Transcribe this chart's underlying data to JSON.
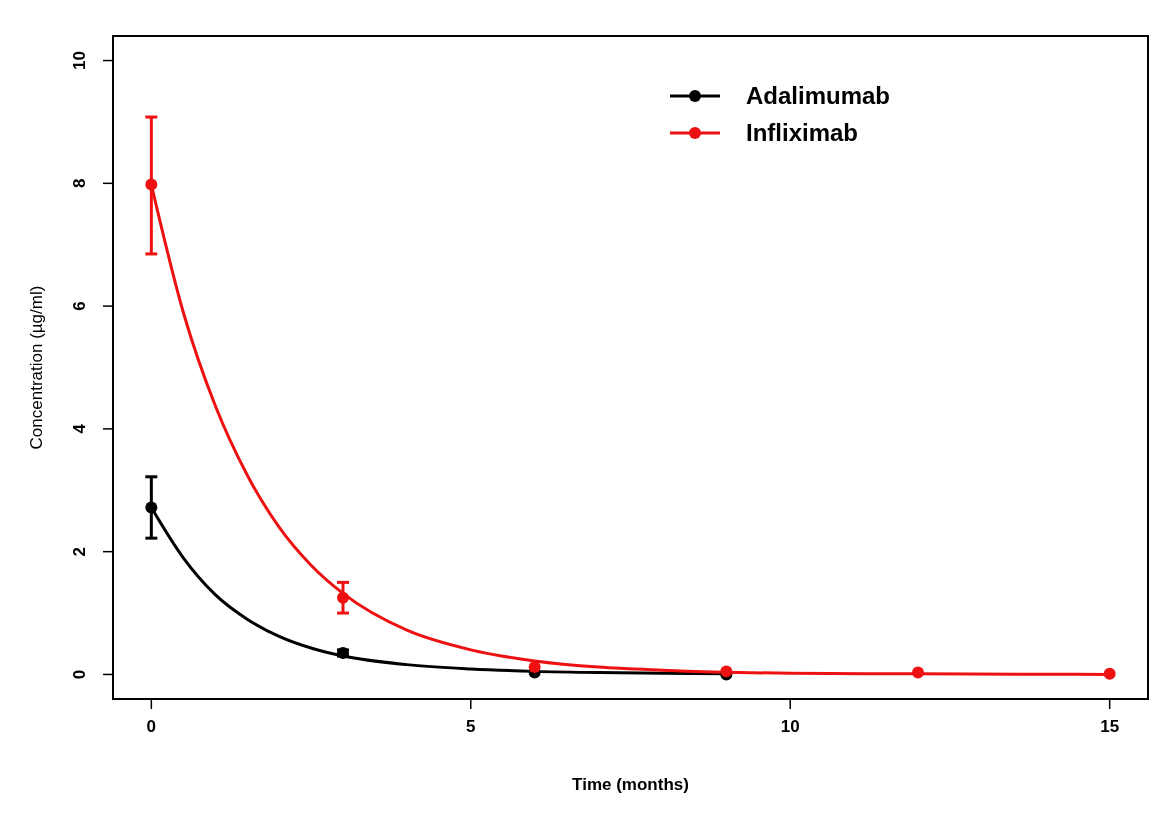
{
  "chart_data": {
    "type": "scatter",
    "xlabel": "Time (months)",
    "ylabel": "Concentration (µg/ml)",
    "xlim": [
      -0.6,
      15.6
    ],
    "ylim": [
      -0.4,
      10.4
    ],
    "xticks": [
      0,
      5,
      10,
      15
    ],
    "yticks": [
      0,
      2,
      4,
      6,
      8,
      10
    ],
    "grid": false,
    "legend": "top right",
    "marker": "circle",
    "series": [
      {
        "type": "line",
        "color": "#000000",
        "x": [
          0,
          0.5,
          1,
          1.5,
          2,
          2.5,
          3,
          4,
          5,
          6,
          7,
          8,
          9
        ],
        "values": [
          2.72,
          1.9,
          1.3,
          0.9,
          0.62,
          0.43,
          0.3,
          0.16,
          0.09,
          0.05,
          0.03,
          0.02,
          0.01
        ],
        "line_style": "solid",
        "marker": "none"
      },
      {
        "type": "line",
        "color": "#ee1111",
        "x": [
          0,
          0.5,
          1,
          1.5,
          2,
          2.5,
          3,
          4,
          5,
          6,
          7,
          8,
          10,
          12,
          15
        ],
        "values": [
          7.98,
          5.9,
          4.38,
          3.25,
          2.4,
          1.78,
          1.32,
          0.72,
          0.4,
          0.22,
          0.12,
          0.07,
          0.02,
          0.01,
          0.0
        ],
        "line_style": "solid",
        "marker": "none"
      },
      {
        "name": "Adalimumab",
        "color": "#000000",
        "x": [
          0,
          3,
          6,
          9
        ],
        "values": [
          2.72,
          0.35,
          0.03,
          0.0
        ],
        "errors": [
          [
            2.22,
            3.22
          ],
          [
            0.3,
            0.4
          ],
          null,
          null
        ]
      },
      {
        "name": "Infliximab",
        "color": "#ee1111",
        "x": [
          0,
          3,
          6,
          9,
          12,
          15
        ],
        "values": [
          7.98,
          1.25,
          0.12,
          0.05,
          0.03,
          0.01
        ],
        "errors": [
          [
            6.85,
            9.08
          ],
          [
            1.0,
            1.5
          ],
          null,
          null,
          null,
          null
        ]
      }
    ]
  }
}
